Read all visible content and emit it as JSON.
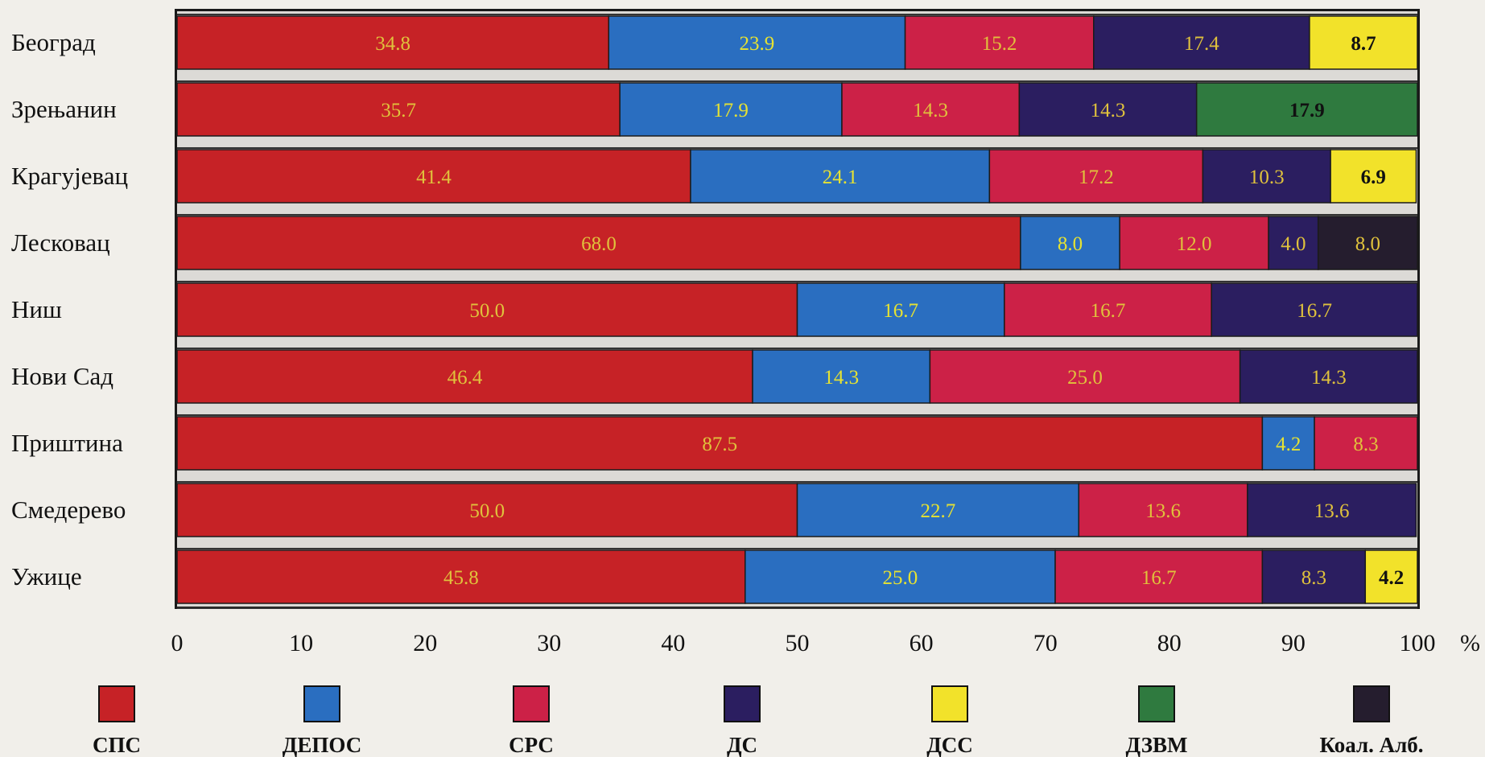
{
  "chart_data": {
    "type": "bar",
    "orientation": "horizontal",
    "stacked": true,
    "title": "",
    "xlabel": "",
    "ylabel": "",
    "xlim": [
      0,
      100
    ],
    "x_unit": "%",
    "x_ticks": [
      "0",
      "10",
      "20",
      "30",
      "40",
      "50",
      "60",
      "70",
      "80",
      "90",
      "100"
    ],
    "legend_position": "bottom",
    "categories": [
      "Београд",
      "Зрењанин",
      "Крагујевац",
      "Лесковац",
      "Ниш",
      "Нови Сад",
      "Приштина",
      "Смедерево",
      "Ужице"
    ],
    "series": [
      {
        "name": "СПС",
        "color": "#c62226",
        "values": [
          34.8,
          35.7,
          41.4,
          68.0,
          50.0,
          46.4,
          87.5,
          50.0,
          45.8
        ]
      },
      {
        "name": "ДЕПОС",
        "color": "#2a6ec0",
        "values": [
          23.9,
          17.9,
          24.1,
          8.0,
          16.7,
          14.3,
          4.2,
          22.7,
          25.0
        ]
      },
      {
        "name": "СРС",
        "color": "#cc2147",
        "values": [
          15.2,
          14.3,
          17.2,
          12.0,
          16.7,
          25.0,
          8.3,
          13.6,
          16.7
        ]
      },
      {
        "name": "ДС",
        "color": "#2b1e60",
        "values": [
          17.4,
          14.3,
          10.3,
          4.0,
          16.7,
          14.3,
          null,
          13.6,
          8.3
        ]
      },
      {
        "name": "ДСС",
        "color": "#f2e22a",
        "values": [
          8.7,
          null,
          6.9,
          null,
          null,
          null,
          null,
          null,
          4.2
        ]
      },
      {
        "name": "ДЗВМ",
        "color": "#2f7a3f",
        "values": [
          null,
          17.9,
          null,
          null,
          null,
          null,
          null,
          null,
          null
        ]
      },
      {
        "name": "Коал. Алб.",
        "color": "#251d2e",
        "values": [
          null,
          null,
          null,
          8.0,
          null,
          null,
          null,
          null,
          null
        ]
      }
    ],
    "data_labels": [
      [
        "34.8",
        "23.9",
        "15.2",
        "17.4",
        "8.7",
        "",
        ""
      ],
      [
        "35.7",
        "17.9",
        "14.3",
        "14.3",
        "",
        "17.9",
        ""
      ],
      [
        "41.4",
        "24.1",
        "17.2",
        "10.3",
        "6.9",
        "",
        ""
      ],
      [
        "68.0",
        "8.0",
        "12.0",
        "4.0",
        "",
        "",
        "8.0"
      ],
      [
        "50.0",
        "16.7",
        "16.7",
        "16.7",
        "",
        "",
        ""
      ],
      [
        "46.4",
        "14.3",
        "25.0",
        "14.3",
        "",
        "",
        ""
      ],
      [
        "87.5",
        "4.2",
        "8.3",
        "",
        "",
        "",
        ""
      ],
      [
        "50.0",
        "22.7",
        "13.6",
        "13.6",
        "",
        "",
        ""
      ],
      [
        "45.8",
        "25.0",
        "16.7",
        "8.3",
        "4.2",
        "",
        ""
      ]
    ],
    "label_colors": {
      "default": "#e0c23c",
      "on_blue": "#e6e232",
      "on_light": "#111111"
    }
  }
}
